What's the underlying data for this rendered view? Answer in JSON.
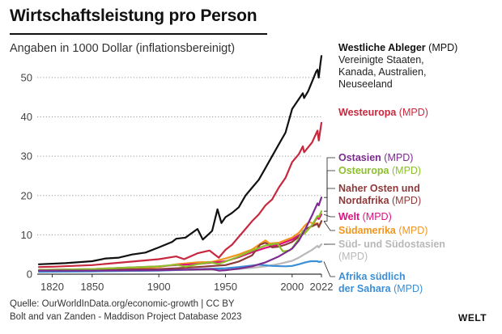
{
  "title": "Wirtschaftsleistung pro Person",
  "subtitle": "Angaben in 1000 Dollar (inflationsbereinigt)",
  "source_line1": "Quelle: OurWorldInData.org/economic-growth | CC BY",
  "source_line2": "Bolt and van Zanden - Maddison Project Database 2023",
  "logo": "WELT",
  "chart_data": {
    "type": "line",
    "title": "Wirtschaftsleistung pro Person",
    "ylabel": "Angaben in 1000 Dollar (inflationsbereinigt)",
    "xlim": [
      1810,
      2022
    ],
    "ylim": [
      0,
      58
    ],
    "x_ticks": [
      "1820",
      "1850",
      "1900",
      "1950",
      "2000",
      "2022"
    ],
    "y_ticks": [
      "0",
      "10",
      "20",
      "30",
      "40",
      "50"
    ],
    "grid": "horizontal dotted",
    "source_suffix": "(MPD)",
    "series": [
      {
        "name": "Westliche Ableger",
        "name_lines": [
          "Westliche Ableger"
        ],
        "detail_lines": [
          "Vereinigte Staaten,",
          "Kanada, Australien,",
          "Neuseeland"
        ],
        "color": "#111111",
        "points": [
          [
            1810,
            2.5
          ],
          [
            1830,
            2.8
          ],
          [
            1850,
            3.3
          ],
          [
            1860,
            4.0
          ],
          [
            1870,
            4.2
          ],
          [
            1880,
            5.0
          ],
          [
            1890,
            5.5
          ],
          [
            1900,
            6.8
          ],
          [
            1910,
            8.2
          ],
          [
            1913,
            9.0
          ],
          [
            1920,
            9.3
          ],
          [
            1929,
            11.5
          ],
          [
            1933,
            8.8
          ],
          [
            1940,
            11.0
          ],
          [
            1944,
            16.5
          ],
          [
            1947,
            13.0
          ],
          [
            1950,
            14.5
          ],
          [
            1955,
            15.6
          ],
          [
            1960,
            17.0
          ],
          [
            1965,
            20.0
          ],
          [
            1970,
            22.0
          ],
          [
            1975,
            24.0
          ],
          [
            1980,
            27.0
          ],
          [
            1985,
            30.0
          ],
          [
            1990,
            33.0
          ],
          [
            1995,
            36.0
          ],
          [
            2000,
            42.0
          ],
          [
            2005,
            44.5
          ],
          [
            2008,
            46.0
          ],
          [
            2009,
            44.8
          ],
          [
            2012,
            46.5
          ],
          [
            2015,
            49.0
          ],
          [
            2018,
            51.5
          ],
          [
            2019,
            52.0
          ],
          [
            2020,
            50.0
          ],
          [
            2021,
            53.0
          ],
          [
            2022,
            55.5
          ]
        ]
      },
      {
        "name": "Westeuropa",
        "name_lines": [
          "Westeuropa"
        ],
        "detail_lines": [],
        "color": "#c8283e",
        "points": [
          [
            1810,
            1.8
          ],
          [
            1820,
            1.9
          ],
          [
            1850,
            2.3
          ],
          [
            1870,
            2.9
          ],
          [
            1900,
            3.8
          ],
          [
            1913,
            4.5
          ],
          [
            1919,
            3.8
          ],
          [
            1929,
            5.3
          ],
          [
            1938,
            6.0
          ],
          [
            1945,
            4.2
          ],
          [
            1950,
            6.2
          ],
          [
            1955,
            7.5
          ],
          [
            1960,
            9.5
          ],
          [
            1965,
            11.5
          ],
          [
            1970,
            13.5
          ],
          [
            1975,
            15.2
          ],
          [
            1980,
            17.5
          ],
          [
            1985,
            19.0
          ],
          [
            1990,
            22.0
          ],
          [
            1995,
            24.5
          ],
          [
            2000,
            28.5
          ],
          [
            2005,
            30.5
          ],
          [
            2008,
            32.5
          ],
          [
            2009,
            31.0
          ],
          [
            2015,
            33.5
          ],
          [
            2019,
            36.5
          ],
          [
            2020,
            34.0
          ],
          [
            2022,
            38.5
          ]
        ]
      },
      {
        "name": "Ostasien",
        "name_lines": [
          "Ostasien"
        ],
        "detail_lines": [],
        "color": "#7b2c8e",
        "points": [
          [
            1810,
            0.9
          ],
          [
            1850,
            0.9
          ],
          [
            1900,
            1.0
          ],
          [
            1913,
            1.1
          ],
          [
            1940,
            1.3
          ],
          [
            1945,
            0.9
          ],
          [
            1950,
            1.0
          ],
          [
            1960,
            1.4
          ],
          [
            1970,
            2.0
          ],
          [
            1980,
            3.0
          ],
          [
            1990,
            4.5
          ],
          [
            2000,
            6.5
          ],
          [
            2005,
            8.5
          ],
          [
            2010,
            11.5
          ],
          [
            2015,
            15.0
          ],
          [
            2019,
            18.0
          ],
          [
            2020,
            17.5
          ],
          [
            2022,
            19.5
          ]
        ]
      },
      {
        "name": "Osteuropa",
        "name_lines": [
          "Osteuropa"
        ],
        "detail_lines": [],
        "color": "#8cbf2c",
        "points": [
          [
            1810,
            1.1
          ],
          [
            1850,
            1.3
          ],
          [
            1900,
            2.0
          ],
          [
            1913,
            2.4
          ],
          [
            1920,
            1.9
          ],
          [
            1929,
            2.5
          ],
          [
            1938,
            3.0
          ],
          [
            1945,
            2.6
          ],
          [
            1950,
            3.2
          ],
          [
            1960,
            4.5
          ],
          [
            1970,
            6.0
          ],
          [
            1980,
            7.3
          ],
          [
            1989,
            7.8
          ],
          [
            1993,
            5.8
          ],
          [
            1998,
            6.0
          ],
          [
            2000,
            6.6
          ],
          [
            2005,
            9.0
          ],
          [
            2008,
            11.0
          ],
          [
            2009,
            10.2
          ],
          [
            2015,
            12.5
          ],
          [
            2019,
            14.8
          ],
          [
            2020,
            14.5
          ],
          [
            2022,
            16.0
          ]
        ]
      },
      {
        "name": "Naher Osten und Nordafrika",
        "name_lines": [
          "Naher Osten und",
          "Nordafrika"
        ],
        "detail_lines": [],
        "color": "#8e3a3a",
        "points": [
          [
            1810,
            1.0
          ],
          [
            1850,
            1.1
          ],
          [
            1900,
            1.3
          ],
          [
            1913,
            1.5
          ],
          [
            1929,
            1.8
          ],
          [
            1950,
            2.3
          ],
          [
            1960,
            3.2
          ],
          [
            1970,
            4.8
          ],
          [
            1976,
            7.5
          ],
          [
            1980,
            8.0
          ],
          [
            1985,
            6.8
          ],
          [
            1990,
            7.0
          ],
          [
            1995,
            7.5
          ],
          [
            2000,
            8.2
          ],
          [
            2005,
            9.5
          ],
          [
            2010,
            11.5
          ],
          [
            2015,
            12.2
          ],
          [
            2019,
            12.8
          ],
          [
            2020,
            12.0
          ],
          [
            2022,
            13.5
          ]
        ]
      },
      {
        "name": "Welt",
        "name_lines": [
          "Welt"
        ],
        "detail_lines": [],
        "color": "#e0107e",
        "points": [
          [
            1810,
            1.1
          ],
          [
            1850,
            1.3
          ],
          [
            1900,
            2.0
          ],
          [
            1913,
            2.3
          ],
          [
            1929,
            2.6
          ],
          [
            1940,
            2.9
          ],
          [
            1950,
            3.3
          ],
          [
            1960,
            4.3
          ],
          [
            1970,
            5.6
          ],
          [
            1980,
            6.7
          ],
          [
            1990,
            7.5
          ],
          [
            2000,
            8.8
          ],
          [
            2008,
            10.5
          ],
          [
            2009,
            10.3
          ],
          [
            2015,
            12.5
          ],
          [
            2019,
            14.5
          ],
          [
            2020,
            14.0
          ],
          [
            2022,
            15.2
          ]
        ]
      },
      {
        "name": "Südamerika",
        "name_lines": [
          "Südamerika"
        ],
        "detail_lines": [],
        "color": "#f0961e",
        "points": [
          [
            1810,
            1.0
          ],
          [
            1850,
            1.1
          ],
          [
            1870,
            1.2
          ],
          [
            1900,
            1.8
          ],
          [
            1913,
            2.5
          ],
          [
            1929,
            3.0
          ],
          [
            1940,
            3.1
          ],
          [
            1950,
            4.0
          ],
          [
            1960,
            5.0
          ],
          [
            1970,
            6.3
          ],
          [
            1980,
            8.6
          ],
          [
            1983,
            7.8
          ],
          [
            1990,
            8.0
          ],
          [
            2000,
            9.3
          ],
          [
            2005,
            10.5
          ],
          [
            2010,
            12.5
          ],
          [
            2013,
            13.3
          ],
          [
            2016,
            12.8
          ],
          [
            2019,
            13.0
          ],
          [
            2020,
            12.0
          ],
          [
            2022,
            13.5
          ]
        ]
      },
      {
        "name": "Süd- und Südostasien",
        "name_lines": [
          "Süd- und Südostasien"
        ],
        "detail_lines": [],
        "color": "#b8b8b8",
        "points": [
          [
            1810,
            0.8
          ],
          [
            1850,
            0.9
          ],
          [
            1900,
            1.0
          ],
          [
            1950,
            1.1
          ],
          [
            1960,
            1.3
          ],
          [
            1970,
            1.6
          ],
          [
            1980,
            2.0
          ],
          [
            1990,
            2.6
          ],
          [
            2000,
            3.4
          ],
          [
            2005,
            4.2
          ],
          [
            2010,
            5.2
          ],
          [
            2015,
            6.2
          ],
          [
            2019,
            7.2
          ],
          [
            2020,
            6.8
          ],
          [
            2022,
            7.6
          ]
        ]
      },
      {
        "name": "Afrika südlich der Sahara",
        "name_lines": [
          "Afrika südlich",
          "der Sahara"
        ],
        "detail_lines": [],
        "color": "#3a8fd6",
        "points": [
          [
            1810,
            0.6
          ],
          [
            1850,
            0.7
          ],
          [
            1900,
            0.9
          ],
          [
            1950,
            1.5
          ],
          [
            1960,
            1.8
          ],
          [
            1970,
            2.2
          ],
          [
            1975,
            2.4
          ],
          [
            1985,
            2.1
          ],
          [
            1995,
            2.0
          ],
          [
            2000,
            2.1
          ],
          [
            2005,
            2.5
          ],
          [
            2010,
            3.0
          ],
          [
            2014,
            3.3
          ],
          [
            2019,
            3.3
          ],
          [
            2020,
            3.1
          ],
          [
            2022,
            3.2
          ]
        ]
      }
    ]
  }
}
